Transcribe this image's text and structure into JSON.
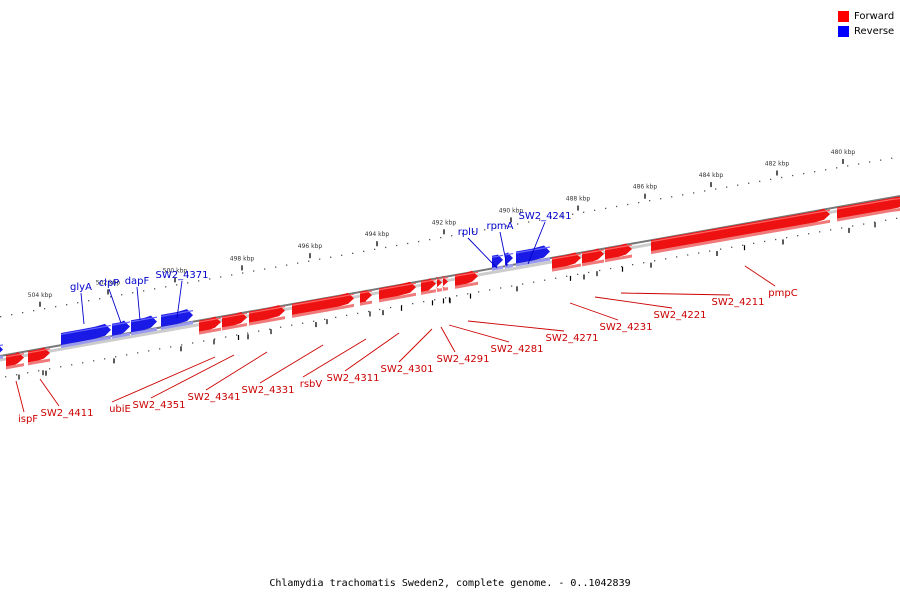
{
  "legend": {
    "items": [
      {
        "label": "Forward",
        "color": "#ff0000"
      },
      {
        "label": "Reverse",
        "color": "#0000ff"
      }
    ]
  },
  "caption": "Chlamydia trachomatis Sweden2, complete genome. - 0..1042839",
  "colors": {
    "forward": "#ee1111",
    "forward_shadow": "#f07a7a",
    "reverse": "#1a1ae6",
    "reverse_shadow": "#9999ee",
    "backbone": "#888888",
    "label_forward": "#cc0000",
    "label_reverse": "#0000cc"
  },
  "scale_labels": [
    "504 kbp",
    "502 kbp",
    "500 kbp",
    "498 kbp",
    "496 kbp",
    "494 kbp",
    "492 kbp",
    "490 kbp",
    "488 kbp",
    "486 kbp",
    "484 kbp",
    "482 kbp",
    "480 kbp"
  ],
  "reverse_gene_labels": [
    "glyA",
    "clpP",
    "dapF",
    "SW2_4371",
    "rplU",
    "rpmA",
    "SW2_4241"
  ],
  "forward_gene_labels": [
    "ispF",
    "SW2_4411",
    "ubiE",
    "SW2_4351",
    "SW2_4341",
    "SW2_4331",
    "rsbV",
    "SW2_4311",
    "SW2_4301",
    "SW2_4291",
    "SW2_4281",
    "SW2_4271",
    "SW2_4231",
    "SW2_4221",
    "SW2_4211",
    "pmpC"
  ]
}
